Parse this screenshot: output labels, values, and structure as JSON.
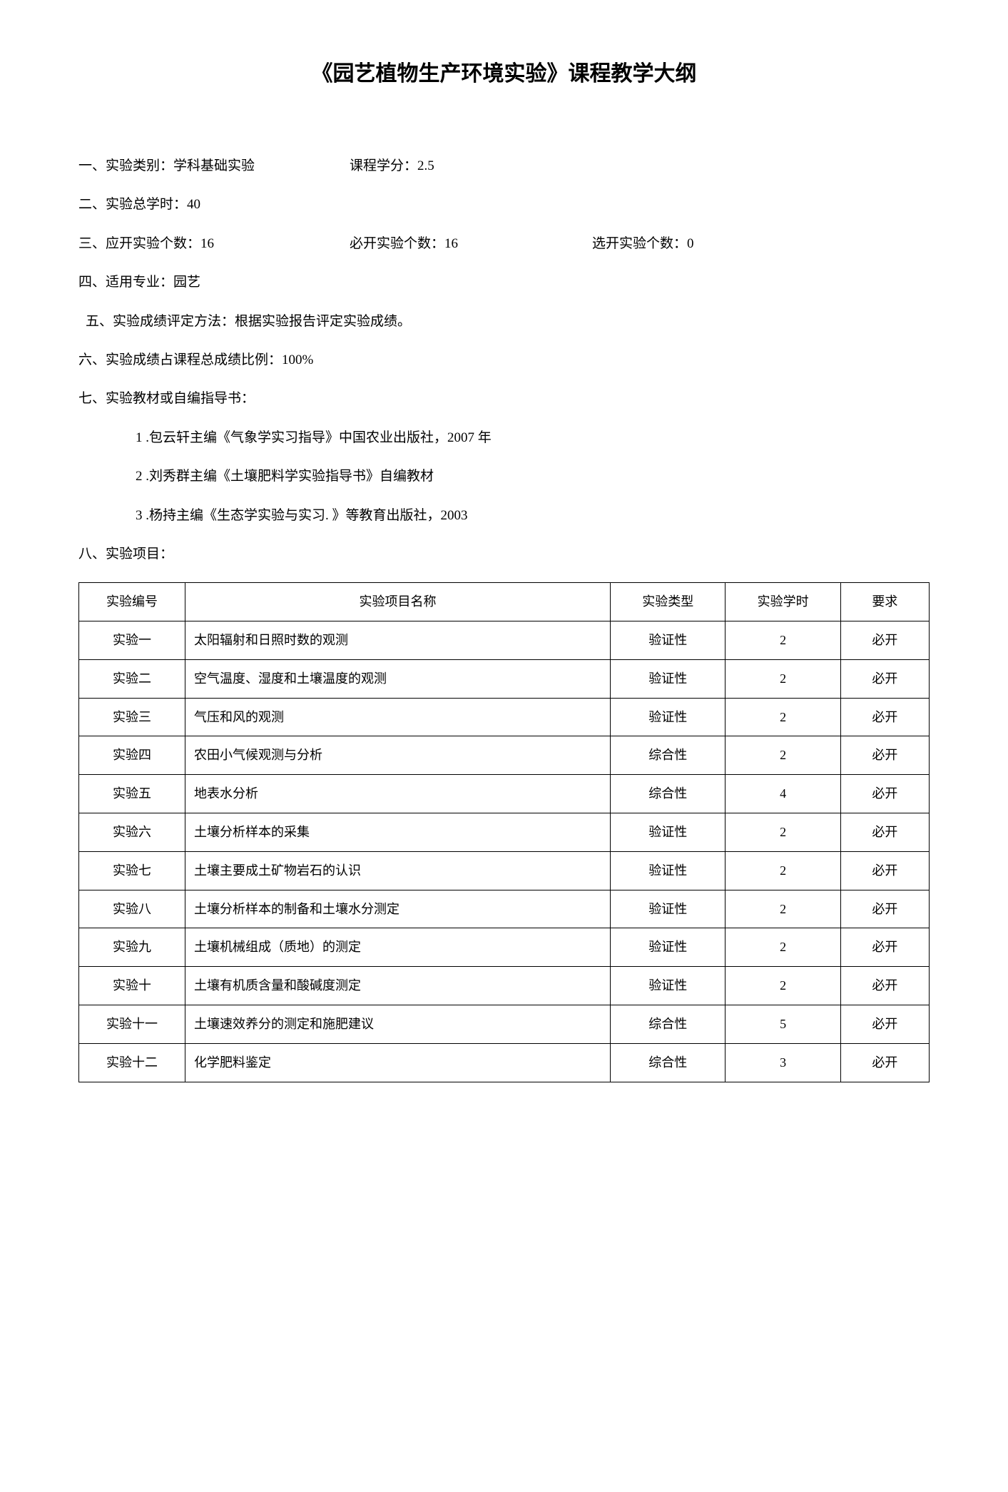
{
  "title": "《园艺植物生产环境实验》课程教学大纲",
  "sections": {
    "s1_label": "一、实验类别：",
    "s1_value": "学科基础实验",
    "s1_credit_label": "课程学分：",
    "s1_credit_value": "2.5",
    "s2_label": "二、实验总学时：",
    "s2_value": "40",
    "s3_label": "三、应开实验个数：",
    "s3_value": "16",
    "s3_must_label": "必开实验个数：",
    "s3_must_value": "16",
    "s3_opt_label": "选开实验个数：",
    "s3_opt_value": "0",
    "s4_label": "四、适用专业：",
    "s4_value": "园艺",
    "s5_label": "五、实验成绩评定方法：",
    "s5_value": "根据实验报告评定实验成绩。",
    "s6_label": "六、实验成绩占课程总成绩比例：",
    "s6_value": "100%",
    "s7_label": "七、实验教材或自编指导书：",
    "s8_label": "八、实验项目："
  },
  "textbooks": [
    "1 .包云轩主编《气象学实习指导》中国农业出版社，2007 年",
    "2 .刘秀群主编《土壤肥料学实验指导书》自编教材",
    "3 .杨持主编《生态学实验与实习. 》等教育出版社，2003"
  ],
  "table": {
    "headers": {
      "id": "实验编号",
      "name": "实验项目名称",
      "type": "实验类型",
      "hours": "实验学时",
      "req": "要求"
    },
    "rows": [
      {
        "id": "实验一",
        "name": "太阳辐射和日照时数的观测",
        "type": "验证性",
        "hours": "2",
        "req": "必开"
      },
      {
        "id": "实验二",
        "name": "空气温度、湿度和土壤温度的观测",
        "type": "验证性",
        "hours": "2",
        "req": "必开"
      },
      {
        "id": "实验三",
        "name": "气压和风的观测",
        "type": "验证性",
        "hours": "2",
        "req": "必开"
      },
      {
        "id": "实验四",
        "name": "农田小气候观测与分析",
        "type": "综合性",
        "hours": "2",
        "req": "必开"
      },
      {
        "id": "实验五",
        "name": "地表水分析",
        "type": "综合性",
        "hours": "4",
        "req": "必开"
      },
      {
        "id": "实验六",
        "name": "土壤分析样本的采集",
        "type": "验证性",
        "hours": "2",
        "req": "必开"
      },
      {
        "id": "实验七",
        "name": "土壤主要成土矿物岩石的认识",
        "type": "验证性",
        "hours": "2",
        "req": "必开"
      },
      {
        "id": "实验八",
        "name": "土壤分析样本的制备和土壤水分测定",
        "type": "验证性",
        "hours": "2",
        "req": "必开"
      },
      {
        "id": "实验九",
        "name": "土壤机械组成（质地）的测定",
        "type": "验证性",
        "hours": "2",
        "req": "必开"
      },
      {
        "id": "实验十",
        "name": "土壤有机质含量和酸碱度测定",
        "type": "验证性",
        "hours": "2",
        "req": "必开"
      },
      {
        "id": "实验十一",
        "name": "土壤速效养分的测定和施肥建议",
        "type": "综合性",
        "hours": "5",
        "req": "必开"
      },
      {
        "id": "实验十二",
        "name": "化学肥料鉴定",
        "type": "综合性",
        "hours": "3",
        "req": "必开"
      }
    ]
  }
}
